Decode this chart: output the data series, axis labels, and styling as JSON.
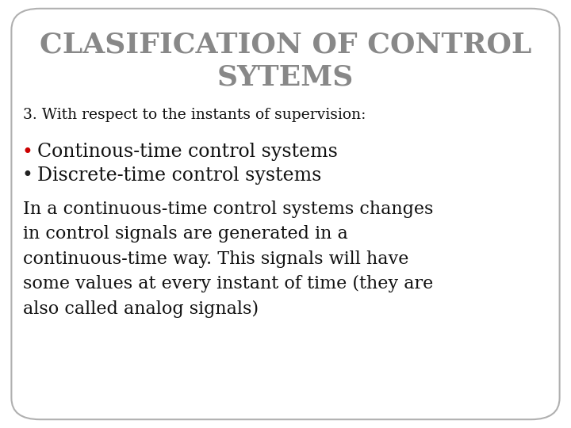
{
  "title_line1": "CLASIFICATION OF CONTROL",
  "title_line2": "SYTEMS",
  "title_color": "#888888",
  "title_fontsize": 26,
  "background_color": "#ffffff",
  "border_color": "#b0b0b0",
  "subtitle": "3. With respect to the instants of supervision:",
  "subtitle_fontsize": 13.5,
  "bullet_color_1": "#cc0000",
  "bullet_color_2": "#222222",
  "bullet1": "Continous-time control systems",
  "bullet2": "Discrete-time control systems",
  "bullet_fontsize": 17,
  "body_text": "In a continuous-time control systems changes\nin control signals are generated in a\ncontinuous-time way. This signals will have\nsome values at every instant of time (they are\nalso called analog signals)",
  "body_fontsize": 16,
  "body_color": "#111111"
}
